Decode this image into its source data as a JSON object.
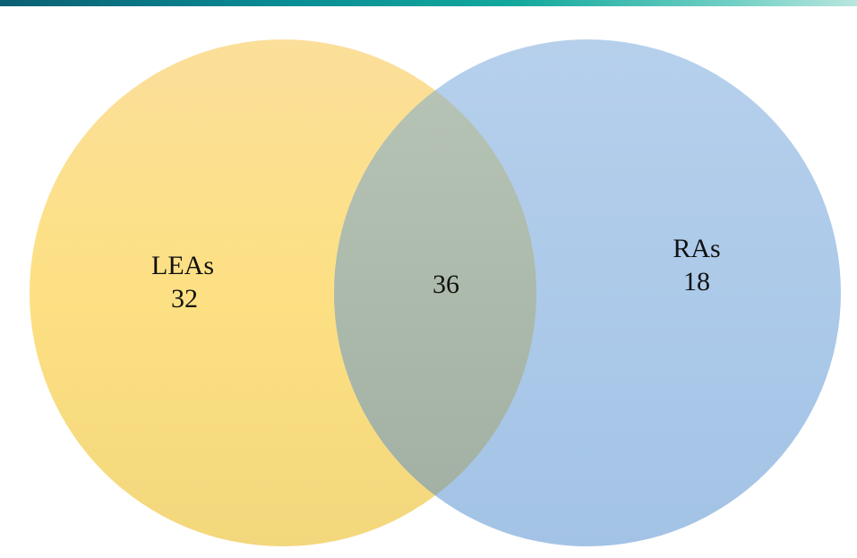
{
  "venn": {
    "left_set": {
      "name": "LEAs",
      "count": "32"
    },
    "right_set": {
      "name": "RAs",
      "count": "18"
    },
    "overlap": {
      "count": "36"
    }
  },
  "colors": {
    "left_circle_top": "#fbdf9a",
    "left_circle_mid": "#fde083",
    "left_circle_bottom": "#f3d77c",
    "right_circle_top": "#b6d0ec",
    "right_circle_bottom": "#a3c3e6",
    "overlap_top": "#b8c5b6",
    "overlap_bottom": "#a0afa2",
    "top_bar_start": "#0b5f74",
    "top_bar_end": "#b9e6df"
  }
}
